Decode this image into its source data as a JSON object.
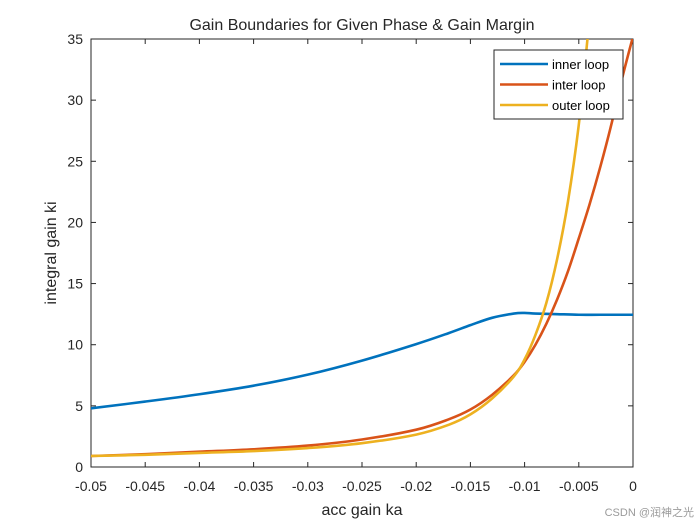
{
  "chart_data": {
    "type": "line",
    "title": "Gain Boundaries for Given Phase & Gain Margin",
    "xlabel": "acc gain ka",
    "ylabel": "integral gain ki",
    "xlim": [
      -0.05,
      0
    ],
    "ylim": [
      0,
      35
    ],
    "xticks": [
      -0.05,
      -0.045,
      -0.04,
      -0.035,
      -0.03,
      -0.025,
      -0.02,
      -0.015,
      -0.01,
      -0.005,
      0
    ],
    "xtick_labels": [
      "-0.05",
      "-0.045",
      "-0.04",
      "-0.035",
      "-0.03",
      "-0.025",
      "-0.02",
      "-0.015",
      "-0.01",
      "-0.005",
      "0"
    ],
    "yticks": [
      0,
      5,
      10,
      15,
      20,
      25,
      30,
      35
    ],
    "ytick_labels": [
      "0",
      "5",
      "10",
      "15",
      "20",
      "25",
      "30",
      "35"
    ],
    "grid": false,
    "legend_position": "top-right",
    "series": [
      {
        "name": "inner loop",
        "color": "#0072BD",
        "x": [
          -0.05,
          -0.045,
          -0.04,
          -0.035,
          -0.03,
          -0.025,
          -0.02,
          -0.017,
          -0.015,
          -0.013,
          -0.011,
          -0.01,
          -0.009,
          -0.007,
          -0.005,
          -0.003,
          0
        ],
        "y": [
          4.8,
          5.35,
          5.95,
          6.65,
          7.55,
          8.7,
          10.05,
          10.95,
          11.6,
          12.2,
          12.55,
          12.6,
          12.55,
          12.5,
          12.45,
          12.45,
          12.45
        ]
      },
      {
        "name": "inter loop",
        "color": "#D95319",
        "x": [
          -0.05,
          -0.045,
          -0.04,
          -0.035,
          -0.03,
          -0.025,
          -0.02,
          -0.017,
          -0.015,
          -0.013,
          -0.011,
          -0.01,
          -0.009,
          -0.008,
          -0.007,
          -0.006,
          -0.005,
          -0.004,
          -0.003,
          -0.002,
          -0.001,
          0
        ],
        "y": [
          0.9,
          1.05,
          1.25,
          1.45,
          1.75,
          2.25,
          3.05,
          3.9,
          4.7,
          5.9,
          7.5,
          8.6,
          10.0,
          11.7,
          13.7,
          16.0,
          18.7,
          21.5,
          24.6,
          28.0,
          31.8,
          35.2
        ]
      },
      {
        "name": "outer loop",
        "color": "#EDB120",
        "x": [
          -0.05,
          -0.045,
          -0.04,
          -0.035,
          -0.03,
          -0.025,
          -0.02,
          -0.017,
          -0.015,
          -0.013,
          -0.011,
          -0.01,
          -0.009,
          -0.008,
          -0.007,
          -0.006,
          -0.005,
          -0.0042
        ],
        "y": [
          0.9,
          1.0,
          1.15,
          1.3,
          1.55,
          1.95,
          2.65,
          3.45,
          4.3,
          5.6,
          7.4,
          8.8,
          10.8,
          13.4,
          17.0,
          21.7,
          28.0,
          35.0
        ]
      }
    ]
  },
  "watermark": "CSDN @润神之光"
}
